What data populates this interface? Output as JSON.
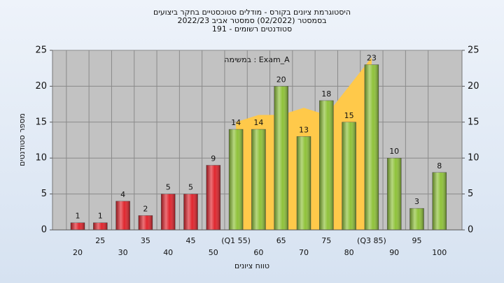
{
  "chart_data": {
    "type": "bar",
    "title": [
      "היסטוגרמת ציונים בקורס - מודלים סטוכסטיים בחקר ביצועים",
      "בסמסטר  (02/2022)  סמסטר אביב 2022/23",
      "סטודנטים רשומים - 191"
    ],
    "annotation": "במשימה : Exam_A",
    "x_label": "טווח ציונים",
    "y_label": "מספר סטודנטים",
    "categories": [
      "20",
      "25",
      "30",
      "35",
      "40",
      "45",
      "50",
      "(Q1 55)",
      "60",
      "65",
      "70",
      "75",
      "80",
      "(Q3 85)",
      "90",
      "95",
      "100"
    ],
    "values": [
      1,
      1,
      4,
      2,
      5,
      5,
      9,
      14,
      14,
      20,
      13,
      18,
      15,
      23,
      10,
      3,
      8
    ],
    "colors": [
      "#e0262e",
      "#e0262e",
      "#e0262e",
      "#e0262e",
      "#e0262e",
      "#e0262e",
      "#e0262e",
      "#8fc23a",
      "#8fc23a",
      "#8fc23a",
      "#8fc23a",
      "#8fc23a",
      "#8fc23a",
      "#8fc23a",
      "#8fc23a",
      "#8fc23a",
      "#8fc23a"
    ],
    "area": {
      "color": "#ffc94a",
      "values": [
        null,
        null,
        null,
        null,
        null,
        null,
        null,
        15,
        16,
        16,
        17,
        16,
        20,
        24,
        null,
        null,
        null
      ]
    },
    "ylim": [
      0,
      25
    ],
    "yticks": [
      0,
      5,
      10,
      15,
      20,
      25
    ],
    "y2lim": [
      0,
      25
    ],
    "y2ticks": [
      0,
      5,
      10,
      15,
      20,
      25
    ],
    "grid": true
  }
}
